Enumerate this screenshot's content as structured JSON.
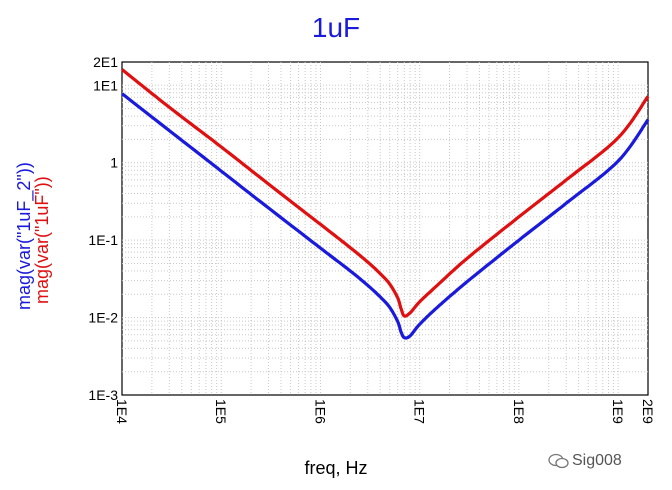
{
  "chart_data": {
    "type": "line",
    "title": "1uF",
    "xlabel": "freq, Hz",
    "ylabels": [
      "mag(var(\"1uF_2\"))",
      "mag(var(\"1uF\"))"
    ],
    "x_scale": "log",
    "y_scale": "log",
    "xlim": [
      10000,
      2000000000
    ],
    "ylim": [
      0.001,
      20
    ],
    "x_ticks": [
      "1E4",
      "1E5",
      "1E6",
      "1E7",
      "1E8",
      "1E9",
      "2E9"
    ],
    "y_ticks": [
      "2E1",
      "1E1",
      "1",
      "1E-1",
      "1E-2",
      "1E-3"
    ],
    "grid": true,
    "series": [
      {
        "color": "#1a1adc",
        "x": [
          10000,
          30000,
          100000,
          300000,
          1000000,
          2000000,
          3000000,
          4000000,
          5000000,
          6000000,
          6500000,
          7000000,
          8000000,
          10000000,
          15000000,
          30000000,
          100000000,
          300000000,
          1000000000,
          2000000000
        ],
        "y": [
          7.8,
          2.6,
          0.78,
          0.26,
          0.079,
          0.04,
          0.026,
          0.0185,
          0.0135,
          0.0089,
          0.0065,
          0.0055,
          0.0058,
          0.0082,
          0.0135,
          0.029,
          0.1,
          0.3,
          1.05,
          3.6
        ]
      },
      {
        "color": "#e01010",
        "x": [
          10000,
          30000,
          100000,
          300000,
          1000000,
          2000000,
          3000000,
          4000000,
          5000000,
          6000000,
          6500000,
          7000000,
          8000000,
          10000000,
          15000000,
          30000000,
          100000000,
          300000000,
          1000000000,
          2000000000
        ],
        "y": [
          16,
          5.2,
          1.6,
          0.53,
          0.16,
          0.08,
          0.052,
          0.037,
          0.027,
          0.018,
          0.013,
          0.0105,
          0.0115,
          0.016,
          0.026,
          0.058,
          0.2,
          0.6,
          2.1,
          7.2
        ]
      }
    ]
  },
  "watermark": "Sig008"
}
